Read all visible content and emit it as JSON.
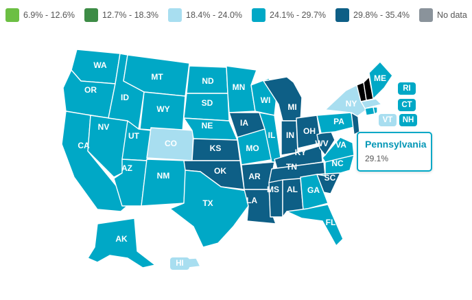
{
  "legend": {
    "items": [
      {
        "label": "6.9% - 12.6%",
        "color": "#6cbf43"
      },
      {
        "label": "12.7% - 18.3%",
        "color": "#3d8c46"
      },
      {
        "label": "18.4% - 24.0%",
        "color": "#a8def0"
      },
      {
        "label": "24.1% - 29.7%",
        "color": "#00a8c6"
      },
      {
        "label": "29.8% - 35.4%",
        "color": "#0e5f86"
      },
      {
        "label": "No data",
        "color": "#8a939b"
      }
    ]
  },
  "map": {
    "states": {
      "WA": "#00a8c6",
      "OR": "#00a8c6",
      "CA": "#00a8c6",
      "NV": "#00a8c6",
      "ID": "#00a8c6",
      "MT": "#00a8c6",
      "WY": "#00a8c6",
      "UT": "#00a8c6",
      "CO": "#a8def0",
      "AZ": "#00a8c6",
      "NM": "#00a8c6",
      "ND": "#00a8c6",
      "SD": "#00a8c6",
      "NE": "#00a8c6",
      "KS": "#0e5f86",
      "OK": "#0e5f86",
      "TX": "#00a8c6",
      "MN": "#00a8c6",
      "IA": "#0e5f86",
      "MO": "#00a8c6",
      "AR": "#0e5f86",
      "LA": "#0e5f86",
      "WI": "#00a8c6",
      "IL": "#00a8c6",
      "MI": "#0e5f86",
      "IN": "#0e5f86",
      "OH": "#0e5f86",
      "KY": "#0e5f86",
      "TN": "#0e5f86",
      "MS": "#0e5f86",
      "AL": "#0e5f86",
      "GA": "#00a8c6",
      "FL": "#00a8c6",
      "SC": "#0e5f86",
      "NC": "#00a8c6",
      "VA": "#00a8c6",
      "WV": "#0e5f86",
      "PA": "#00a8c6",
      "NY": "#a8def0",
      "ME": "#00a8c6",
      "AK": "#00a8c6",
      "HI": "#a8def0"
    },
    "labels": {
      "WA": "WA",
      "OR": "OR",
      "CA": "CA",
      "NV": "NV",
      "ID": "ID",
      "MT": "MT",
      "WY": "WY",
      "UT": "UT",
      "CO": "CO",
      "AZ": "AZ",
      "NM": "NM",
      "ND": "ND",
      "SD": "SD",
      "NE": "NE",
      "KS": "KS",
      "OK": "OK",
      "TX": "TX",
      "MN": "MN",
      "IA": "IA",
      "MO": "MO",
      "AR": "AR",
      "LA": "LA",
      "WI": "WI",
      "IL": "IL",
      "MI": "MI",
      "IN": "IN",
      "OH": "OH",
      "KY": "KY",
      "TN": "TN",
      "MS": "MS",
      "AL": "AL",
      "GA": "GA",
      "FL": "FL",
      "SC": "SC",
      "NC": "NC",
      "VA": "VA",
      "WV": "WV",
      "PA": "PA",
      "NY": "NY",
      "ME": "ME",
      "AK": "AK",
      "HI": "HI"
    },
    "small_states": {
      "RI": {
        "label": "RI",
        "color": "#00a8c6"
      },
      "CT": {
        "label": "CT",
        "color": "#00a8c6"
      },
      "VT": {
        "label": "VT",
        "color": "#a8def0"
      },
      "NH": {
        "label": "NH",
        "color": "#00a8c6"
      }
    }
  },
  "tooltip": {
    "title": "Pennsylvania",
    "value": "29.1%"
  }
}
